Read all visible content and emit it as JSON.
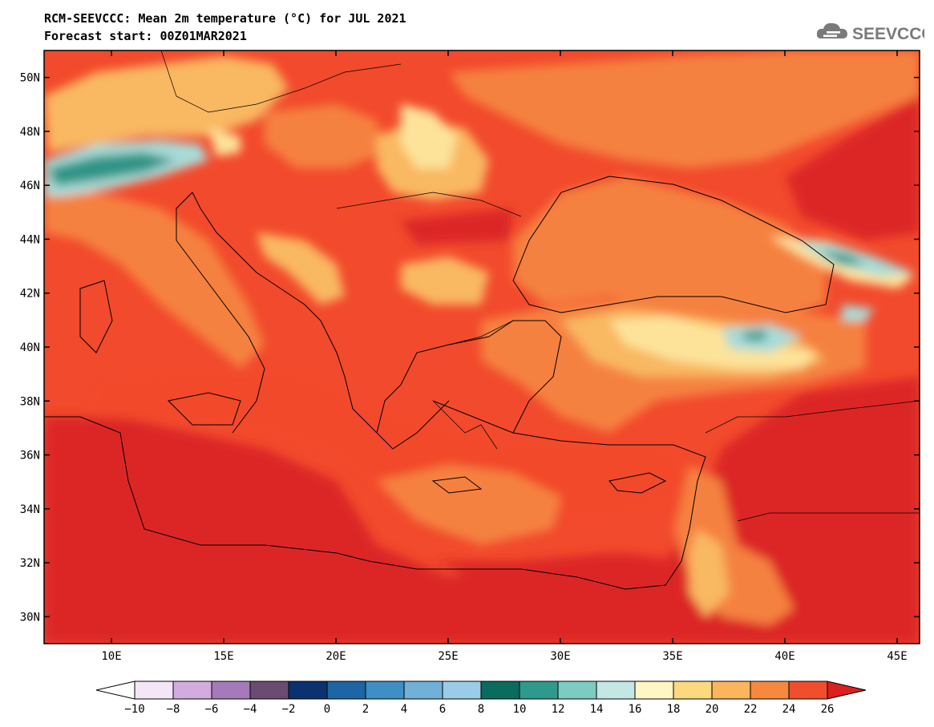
{
  "header": {
    "title_line1": "RCM-SEEVCCC: Mean 2m temperature (°C) for JUL 2021",
    "title_line2": "Forecast start: 00Z01MAR2021",
    "logo_text": "SEEVCCC",
    "logo_icon": "cloud-icon"
  },
  "map": {
    "lat_labels": [
      "50N",
      "48N",
      "46N",
      "44N",
      "42N",
      "40N",
      "38N",
      "36N",
      "34N",
      "32N",
      "30N"
    ],
    "lat_values": [
      50,
      48,
      46,
      44,
      42,
      40,
      38,
      36,
      34,
      32,
      30
    ],
    "lon_labels": [
      "10E",
      "15E",
      "20E",
      "25E",
      "30E",
      "35E",
      "40E",
      "45E"
    ],
    "lon_values": [
      10,
      15,
      20,
      25,
      30,
      35,
      40,
      45
    ],
    "lon_range": [
      7,
      46
    ],
    "lat_range": [
      29,
      51
    ],
    "dominant_colors": {
      "very_hot": "#dc2626",
      "hot": "#f24a2c",
      "warm": "#f5813f",
      "mild": "#f9b862",
      "cool": "#fde39a",
      "cold_teal": "#2d9486",
      "cold_light": "#a9dbd8"
    }
  },
  "colorbar": {
    "labels": [
      "−10",
      "−8",
      "−6",
      "−4",
      "−2",
      "0",
      "2",
      "4",
      "6",
      "8",
      "10",
      "12",
      "14",
      "16",
      "18",
      "20",
      "22",
      "24",
      "26"
    ],
    "colors": [
      "#f3e6f7",
      "#d3acdf",
      "#a47ab8",
      "#6a4b72",
      "#0c3170",
      "#1d65a4",
      "#3f8fc6",
      "#70b0d9",
      "#9bcce6",
      "#0b6b5d",
      "#2f9a8c",
      "#7ecbbf",
      "#c3e8e3",
      "#fdf6c5",
      "#fbd97e",
      "#fbb55c",
      "#f6883f",
      "#f04e2d"
    ],
    "low_arrow_color": "#ffffff",
    "high_arrow_color": "#dc1f1f"
  }
}
